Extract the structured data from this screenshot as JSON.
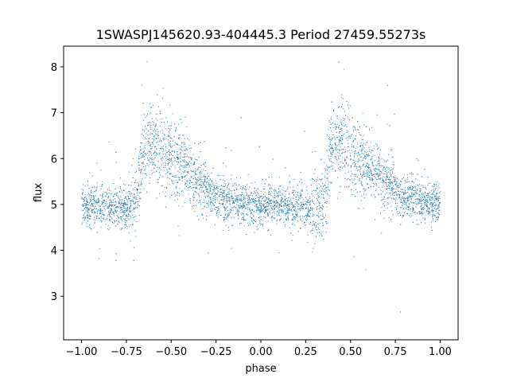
{
  "chart_data": {
    "type": "scatter",
    "title": "1SWASPJ145620.93-404445.3 Period 27459.55273s",
    "xlabel": "phase",
    "ylabel": "flux",
    "xlim": [
      -1.1,
      1.1
    ],
    "ylim": [
      2.05,
      8.45
    ],
    "xticks": [
      -1.0,
      -0.75,
      -0.5,
      -0.25,
      0.0,
      0.25,
      0.5,
      0.75,
      1.0
    ],
    "xtick_labels": [
      "−1.00",
      "−0.75",
      "−0.50",
      "−0.25",
      "0.00",
      "0.25",
      "0.50",
      "0.75",
      "1.00"
    ],
    "yticks": [
      3,
      4,
      5,
      6,
      7,
      8
    ],
    "ytick_labels": [
      "3",
      "4",
      "5",
      "6",
      "7",
      "8"
    ],
    "grid": false,
    "point_color": "#1f77b4",
    "series": [
      {
        "profile_x": [
          -1.0,
          -0.9,
          -0.8,
          -0.75,
          -0.7,
          -0.65,
          -0.6,
          -0.55,
          -0.5,
          -0.45,
          -0.4,
          -0.35,
          -0.3,
          -0.25,
          -0.2,
          -0.15,
          -0.1,
          -0.05,
          0.0,
          0.1,
          0.2,
          0.25,
          0.3,
          0.35,
          0.4,
          0.45,
          0.5,
          0.55,
          0.6,
          0.65,
          0.7,
          0.75,
          0.8,
          0.85,
          0.9,
          0.95,
          1.0
        ],
        "profile_y": [
          5.0,
          4.95,
          4.9,
          4.95,
          5.0,
          6.3,
          6.4,
          6.2,
          6.0,
          5.85,
          5.7,
          5.5,
          5.3,
          5.2,
          5.1,
          5.05,
          5.0,
          5.0,
          5.0,
          4.98,
          4.95,
          4.9,
          4.95,
          5.0,
          6.3,
          6.4,
          6.2,
          6.0,
          5.85,
          5.7,
          5.5,
          5.3,
          5.2,
          5.1,
          5.05,
          5.0,
          5.0
        ]
      }
    ]
  }
}
